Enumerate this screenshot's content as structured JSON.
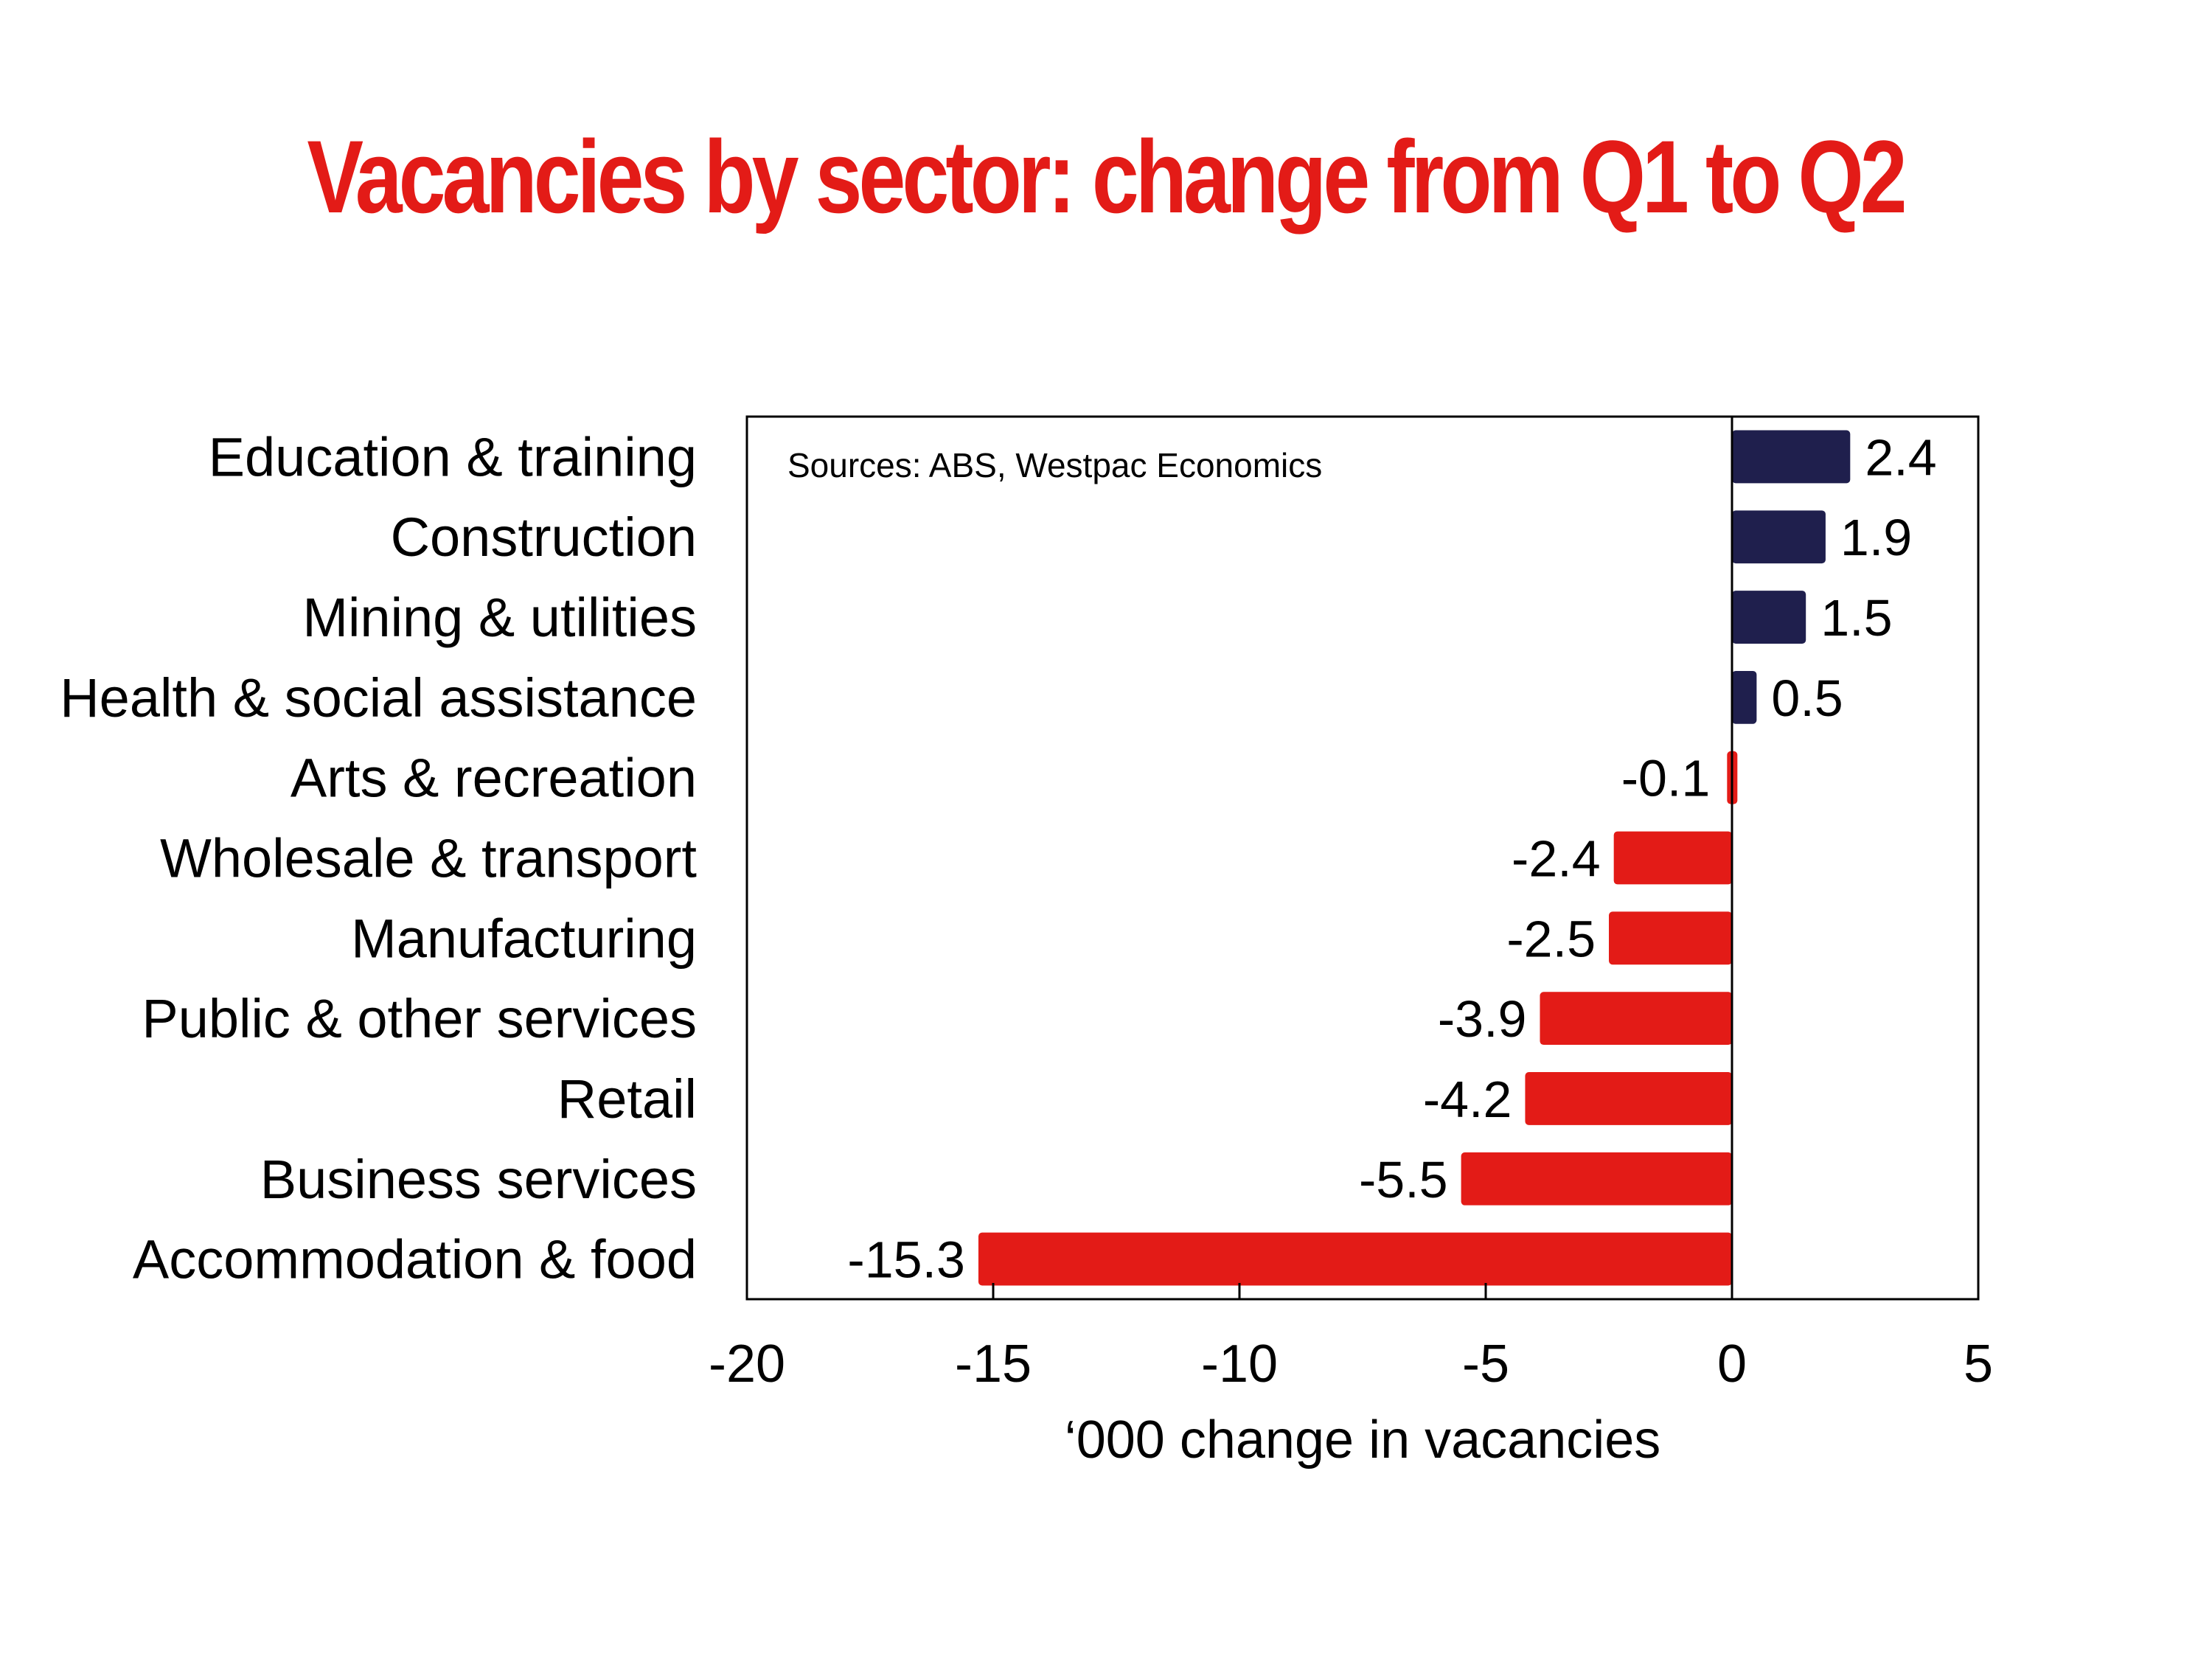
{
  "colors": {
    "positive": "#1f1f4d",
    "negative": "#e31b17",
    "title": "#e31b17",
    "axis": "#000000"
  },
  "chart_data": {
    "type": "bar",
    "orientation": "horizontal",
    "title": "Vacancies by sector: change from Q1 to Q2",
    "xlabel": "‘000 change in vacancies",
    "ylabel": "",
    "xlim": [
      -20,
      5
    ],
    "xticks": [
      -20,
      -15,
      -10,
      -5,
      0,
      5
    ],
    "xtick_labels": [
      "-20",
      "-15",
      "-10",
      "-5",
      "0",
      "5"
    ],
    "grid": false,
    "note": "Sources: ABS, Westpac Economics",
    "categories": [
      "Education & training",
      "Construction",
      "Mining & utilities",
      "Health & social assistance",
      "Arts & recreation",
      "Wholesale & transport",
      "Manufacturing",
      "Public & other services",
      "Retail",
      "Business services",
      "Accommodation & food"
    ],
    "values": [
      2.4,
      1.9,
      1.5,
      0.5,
      -0.1,
      -2.4,
      -2.5,
      -3.9,
      -4.2,
      -5.5,
      -15.3
    ],
    "value_labels": [
      "2.4",
      "1.9",
      "1.5",
      "0.5",
      "-0.1",
      "-2.4",
      "-2.5",
      "-3.9",
      "-4.2",
      "-5.5",
      "-15.3"
    ]
  }
}
